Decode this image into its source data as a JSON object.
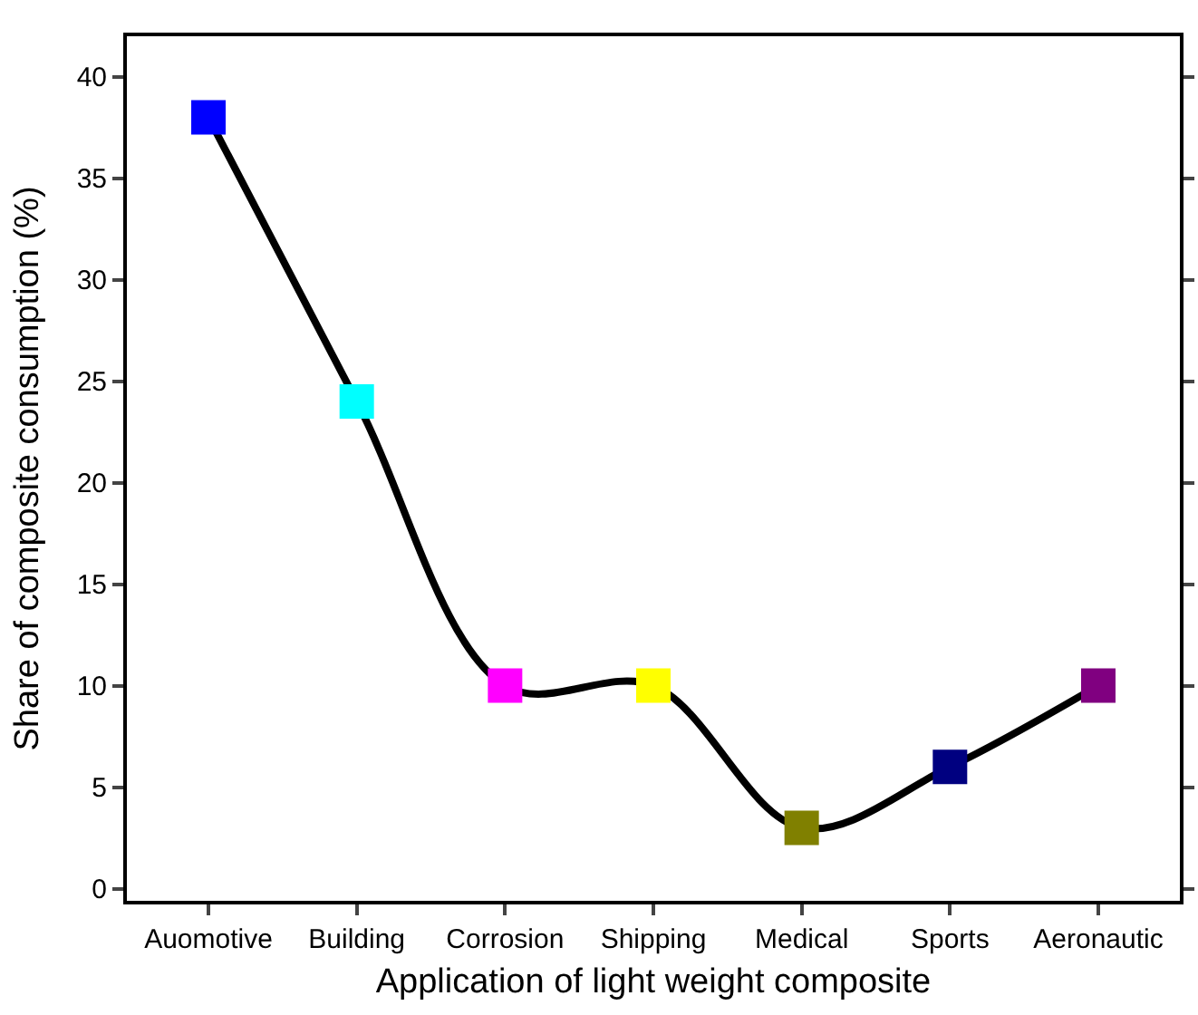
{
  "chart_data": {
    "type": "line",
    "xlabel": "Application of light weight composite",
    "ylabel": "Share of composite consumption (%)",
    "categories": [
      "Auomotive",
      "Building",
      "Corrosion",
      "Shipping",
      "Medical",
      "Sports",
      "Aeronautic"
    ],
    "series": [
      {
        "color": "#000000",
        "values": [
          38,
          24,
          10,
          10,
          3,
          6,
          10
        ],
        "colors": [
          "#0000ff",
          "#00ffff",
          "#ff00ff",
          "#ffff00",
          "#808000",
          "#000080",
          "#800080"
        ]
      }
    ],
    "ylim": [
      -0.6,
      42
    ],
    "yticks": [
      0,
      5,
      10,
      15,
      20,
      25,
      30,
      35,
      40
    ],
    "marker": "square",
    "line_style": "solid",
    "grid": false
  }
}
